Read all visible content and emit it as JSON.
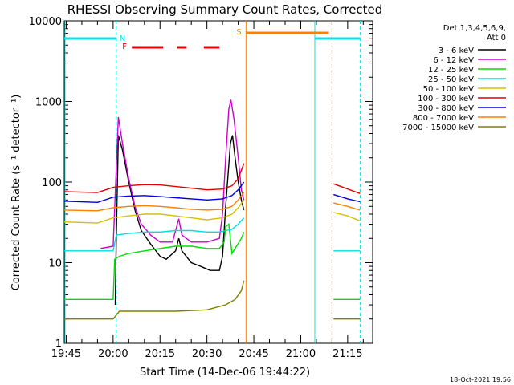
{
  "chart_data": {
    "type": "line",
    "title": "RHESSI Observing Summary Count Rates, Corrected",
    "xlabel": "Start Time (14-Dec-06 19:44:22)",
    "ylabel": "Corrected Count Rate (s⁻¹ detector⁻¹)",
    "y_scale": "log",
    "ylim": [
      1,
      10000
    ],
    "xlim": [
      "19:44:22",
      "21:23:00"
    ],
    "x_ticks": [
      "19:45",
      "20:00",
      "20:15",
      "20:30",
      "20:45",
      "21:00",
      "21:15"
    ],
    "y_ticks": [
      "1",
      "10",
      "100",
      "1000",
      "10000"
    ],
    "legend_header": [
      "Det 1,3,4,5,6,9,",
      "Att 0"
    ],
    "legend_position": "right",
    "timestamp": "18-Oct-2021 19:56",
    "annotations": {
      "night_label": "N",
      "flare_label": "F",
      "saa_label": "S"
    },
    "marker_times": {
      "night_bar": [
        "19:44:22",
        "20:01:00"
      ],
      "night_bar_2": [
        "21:04:30",
        "21:19:00"
      ],
      "night_end_line": "20:01:00",
      "night_start_line": "21:04:30",
      "night_end_line_2": "21:19:00",
      "flare_bars": [
        [
          "20:06:00",
          "20:16:00"
        ],
        [
          "20:20:30",
          "20:23:30"
        ],
        [
          "20:29:00",
          "20:34:00"
        ]
      ],
      "saa_bar": [
        "20:42:30",
        "21:09:00"
      ],
      "saa_lines": [
        "20:42:30",
        "21:10:00"
      ]
    },
    "gaps": [
      [
        "20:38:30",
        "21:10:30"
      ]
    ],
    "series": [
      {
        "name": "3 - 6 keV",
        "color": "#000000",
        "points": [
          [
            "20:00:40",
            3
          ],
          [
            "20:01:00",
            20
          ],
          [
            "20:01:40",
            380
          ],
          [
            "20:03",
            250
          ],
          [
            "20:05",
            100
          ],
          [
            "20:07",
            45
          ],
          [
            "20:09",
            25
          ],
          [
            "20:12",
            17
          ],
          [
            "20:15",
            12
          ],
          [
            "20:17",
            11
          ],
          [
            "20:20",
            14
          ],
          [
            "20:21",
            20
          ],
          [
            "20:22",
            14
          ],
          [
            "20:25",
            10
          ],
          [
            "20:28",
            9
          ],
          [
            "20:31",
            8
          ],
          [
            "20:34",
            8
          ],
          [
            "20:35",
            12
          ],
          [
            "20:36",
            50
          ],
          [
            "20:37:30",
            300
          ],
          [
            "20:38:10",
            380
          ],
          [
            "20:39",
            200
          ],
          [
            "20:40",
            100
          ],
          [
            "20:41",
            60
          ],
          [
            "20:41:50",
            45
          ]
        ]
      },
      {
        "name": "6 - 12 keV",
        "color": "#d000d0",
        "points": [
          [
            "19:56",
            15
          ],
          [
            "20:00",
            16
          ],
          [
            "20:01",
            150
          ],
          [
            "20:01:40",
            640
          ],
          [
            "20:03",
            300
          ],
          [
            "20:05",
            110
          ],
          [
            "20:07",
            50
          ],
          [
            "20:09",
            30
          ],
          [
            "20:12",
            22
          ],
          [
            "20:15",
            18
          ],
          [
            "20:19",
            18
          ],
          [
            "20:21",
            35
          ],
          [
            "20:22",
            22
          ],
          [
            "20:25",
            18
          ],
          [
            "20:30",
            18
          ],
          [
            "20:34",
            20
          ],
          [
            "20:35",
            40
          ],
          [
            "20:36",
            200
          ],
          [
            "20:37",
            800
          ],
          [
            "20:37:40",
            1050
          ],
          [
            "20:38:40",
            600
          ],
          [
            "20:40",
            200
          ],
          [
            "20:41",
            80
          ],
          [
            "20:41:50",
            60
          ]
        ]
      },
      {
        "name": "12 - 25 keV",
        "color": "#00dd00",
        "points": [
          [
            "19:44:22",
            3.5
          ],
          [
            "20:00",
            3.5
          ],
          [
            "20:00:30",
            11
          ],
          [
            "20:02",
            12
          ],
          [
            "20:05",
            13
          ],
          [
            "20:10",
            14
          ],
          [
            "20:15",
            15
          ],
          [
            "20:20",
            16
          ],
          [
            "20:25",
            16
          ],
          [
            "20:30",
            15
          ],
          [
            "20:34",
            15
          ],
          [
            "20:35:30",
            18
          ],
          [
            "20:36",
            28
          ],
          [
            "20:37",
            30
          ],
          [
            "20:38",
            13
          ],
          [
            "20:39",
            15
          ],
          [
            "20:41",
            20
          ],
          [
            "20:41:50",
            24
          ],
          [
            "21:10:30",
            3.5
          ],
          [
            "21:19",
            3.5
          ]
        ]
      },
      {
        "name": "25 - 50 keV",
        "color": "#00dddd",
        "points": [
          [
            "19:44:22",
            14
          ],
          [
            "20:00",
            14
          ],
          [
            "20:01",
            22
          ],
          [
            "20:05",
            23
          ],
          [
            "20:10",
            24
          ],
          [
            "20:15",
            24
          ],
          [
            "20:20",
            25
          ],
          [
            "20:25",
            25
          ],
          [
            "20:30",
            24
          ],
          [
            "20:34",
            24
          ],
          [
            "20:36",
            25
          ],
          [
            "20:38",
            26
          ],
          [
            "20:40",
            30
          ],
          [
            "20:41:50",
            36
          ],
          [
            "21:10:30",
            14
          ],
          [
            "21:19",
            14
          ]
        ]
      },
      {
        "name": "50 - 100 keV",
        "color": "#d4c000",
        "points": [
          [
            "19:44:22",
            32
          ],
          [
            "19:55",
            31
          ],
          [
            "20:00",
            36
          ],
          [
            "20:05",
            38
          ],
          [
            "20:10",
            40
          ],
          [
            "20:15",
            40
          ],
          [
            "20:20",
            38
          ],
          [
            "20:25",
            36
          ],
          [
            "20:30",
            34
          ],
          [
            "20:35",
            36
          ],
          [
            "20:38",
            40
          ],
          [
            "20:40",
            48
          ],
          [
            "20:41:50",
            60
          ],
          [
            "21:10:30",
            42
          ],
          [
            "21:15",
            38
          ],
          [
            "21:19",
            33
          ]
        ]
      },
      {
        "name": "100 - 300 keV",
        "color": "#000000",
        "points": []
      },
      {
        "name": "300 - 800 keV",
        "color": "#0000e0",
        "points": [
          [
            "19:44:22",
            58
          ],
          [
            "19:55",
            56
          ],
          [
            "20:00",
            65
          ],
          [
            "20:05",
            67
          ],
          [
            "20:10",
            68
          ],
          [
            "20:15",
            66
          ],
          [
            "20:20",
            64
          ],
          [
            "20:25",
            62
          ],
          [
            "20:30",
            60
          ],
          [
            "20:35",
            62
          ],
          [
            "20:38",
            68
          ],
          [
            "20:40",
            80
          ],
          [
            "20:41:50",
            100
          ],
          [
            "21:10:30",
            70
          ],
          [
            "21:15",
            62
          ],
          [
            "21:19",
            57
          ]
        ]
      },
      {
        "name": "800 - 7000 keV",
        "color": "#ff7f00",
        "points": [
          [
            "19:44:22",
            45
          ],
          [
            "19:55",
            44
          ],
          [
            "20:00",
            48
          ],
          [
            "20:05",
            50
          ],
          [
            "20:10",
            51
          ],
          [
            "20:15",
            50
          ],
          [
            "20:20",
            48
          ],
          [
            "20:25",
            46
          ],
          [
            "20:30",
            45
          ],
          [
            "20:35",
            46
          ],
          [
            "20:38",
            50
          ],
          [
            "20:40",
            60
          ],
          [
            "20:41:50",
            75
          ],
          [
            "21:10:30",
            55
          ],
          [
            "21:15",
            50
          ],
          [
            "21:19",
            45
          ]
        ]
      },
      {
        "name": "7000 - 15000 keV",
        "color": "#808000",
        "points": [
          [
            "19:44:22",
            2
          ],
          [
            "20:00",
            2
          ],
          [
            "20:02",
            2.5
          ],
          [
            "20:10",
            2.5
          ],
          [
            "20:20",
            2.5
          ],
          [
            "20:30",
            2.6
          ],
          [
            "20:36",
            3
          ],
          [
            "20:39",
            3.5
          ],
          [
            "20:41",
            4.5
          ],
          [
            "20:41:50",
            6
          ],
          [
            "21:10:30",
            2
          ],
          [
            "21:19",
            2
          ]
        ]
      }
    ],
    "red_series": {
      "name": "100 - 300 keV",
      "color": "#e00000",
      "points": [
        [
          "19:44:22",
          76
        ],
        [
          "19:55",
          74
        ],
        [
          "20:00",
          86
        ],
        [
          "20:05",
          90
        ],
        [
          "20:10",
          93
        ],
        [
          "20:15",
          92
        ],
        [
          "20:20",
          88
        ],
        [
          "20:25",
          84
        ],
        [
          "20:30",
          80
        ],
        [
          "20:35",
          82
        ],
        [
          "20:38",
          90
        ],
        [
          "20:40",
          110
        ],
        [
          "20:41:50",
          170
        ],
        [
          "21:10:30",
          95
        ],
        [
          "21:15",
          82
        ],
        [
          "21:19",
          72
        ]
      ]
    }
  }
}
